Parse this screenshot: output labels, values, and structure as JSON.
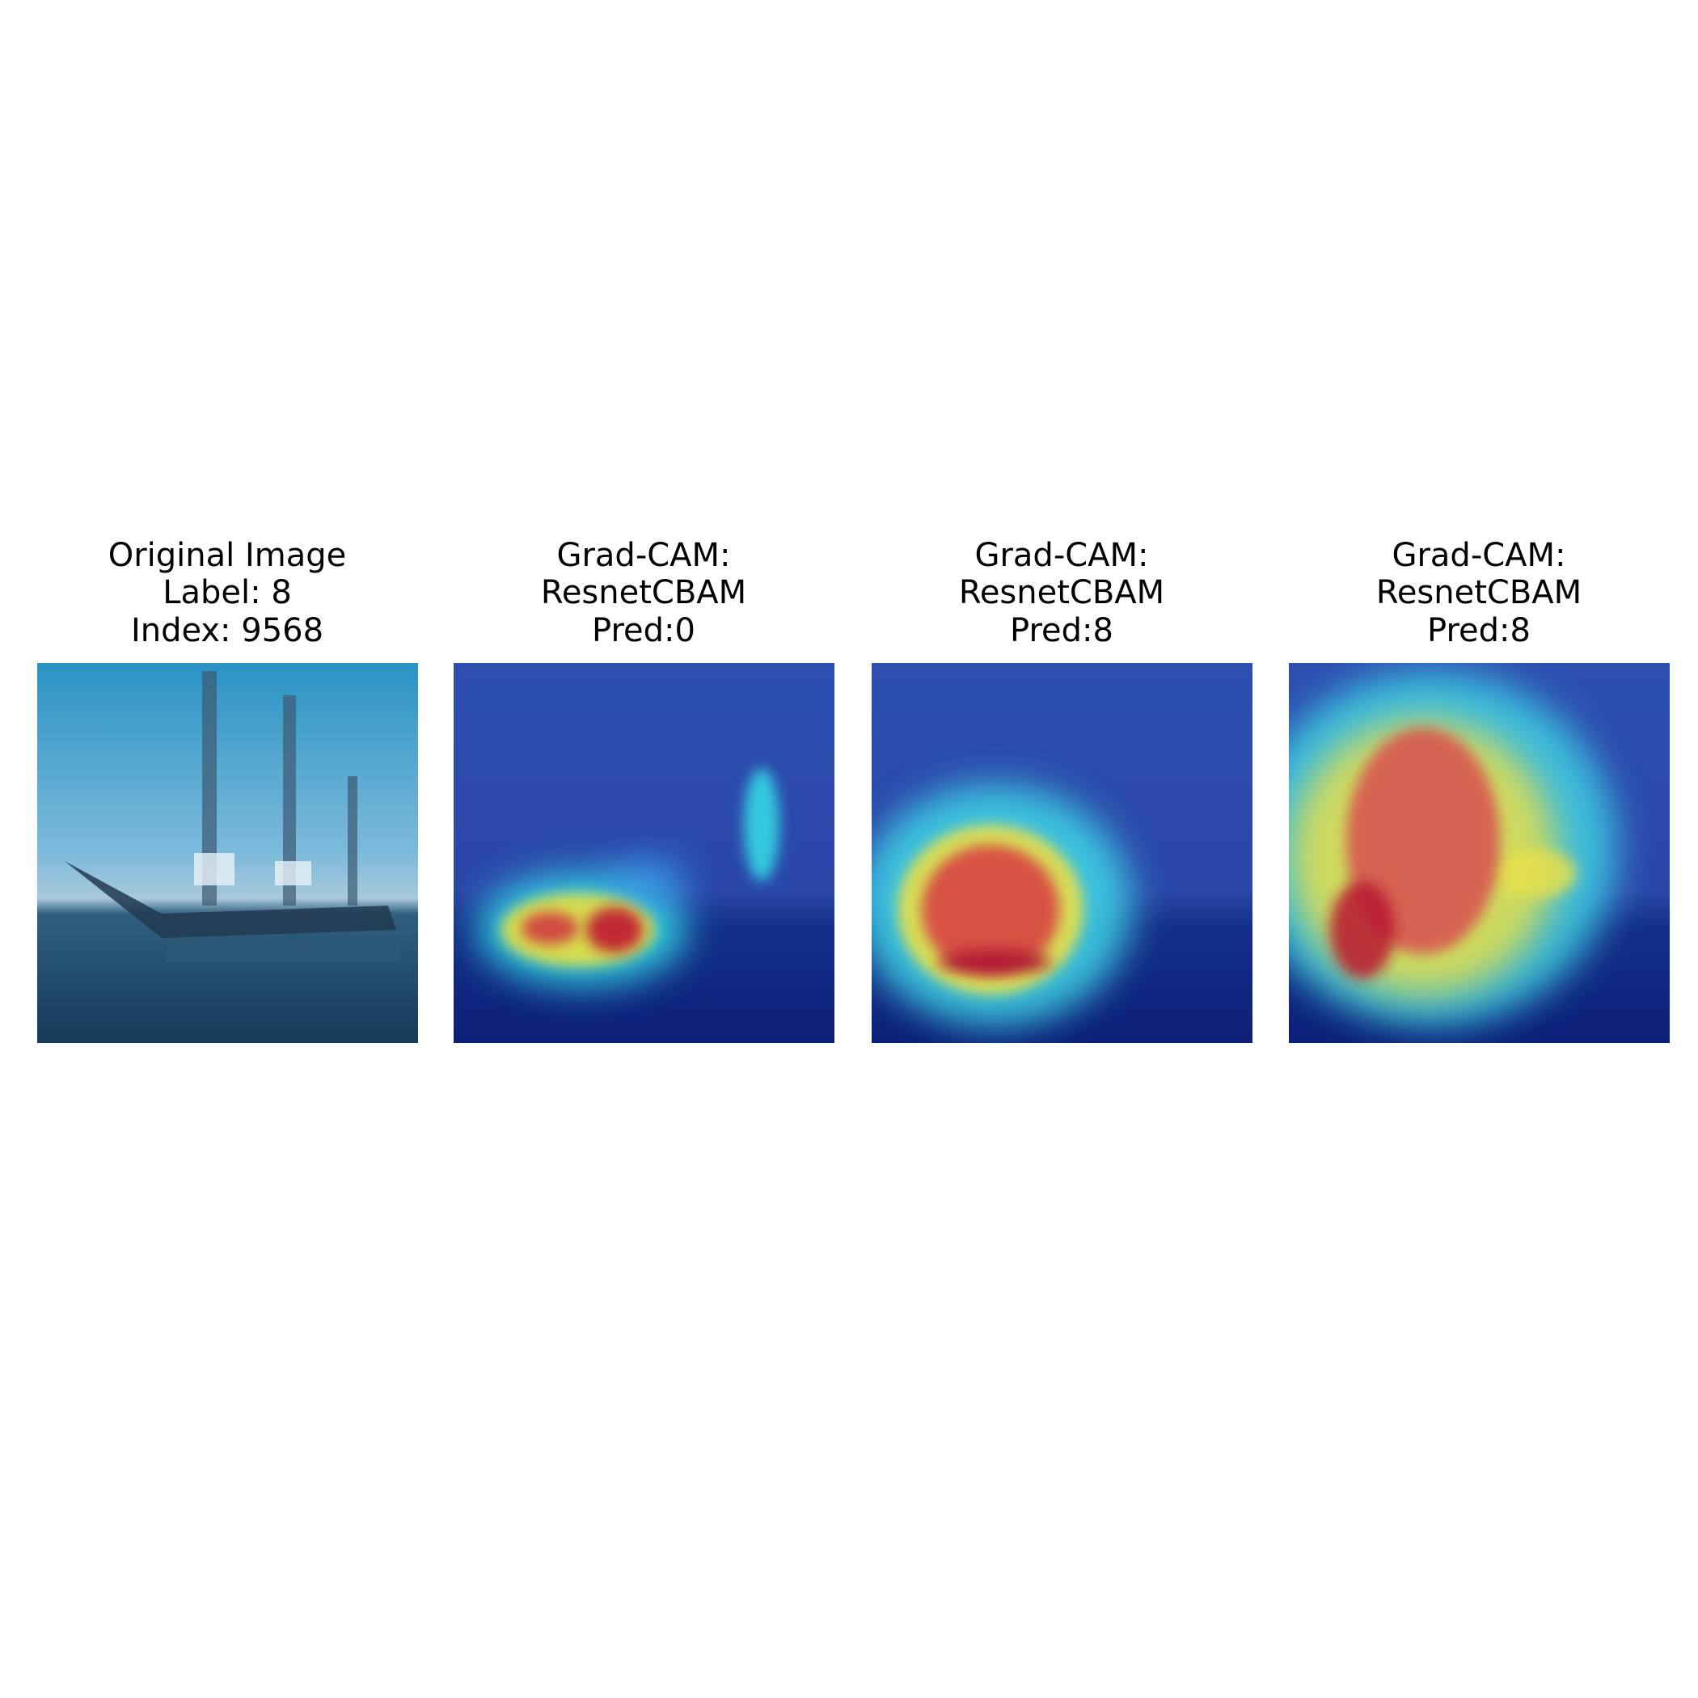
{
  "panels": [
    {
      "title": [
        "Original Image",
        "Label: 8",
        "Index: 9568"
      ]
    },
    {
      "title": [
        "Grad-CAM:",
        "ResnetCBAM",
        "Pred:0"
      ]
    },
    {
      "title": [
        "Grad-CAM:",
        "ResnetCBAM",
        "Pred:8"
      ]
    },
    {
      "title": [
        "Grad-CAM:",
        "ResnetCBAM",
        "Pred:8"
      ]
    }
  ]
}
